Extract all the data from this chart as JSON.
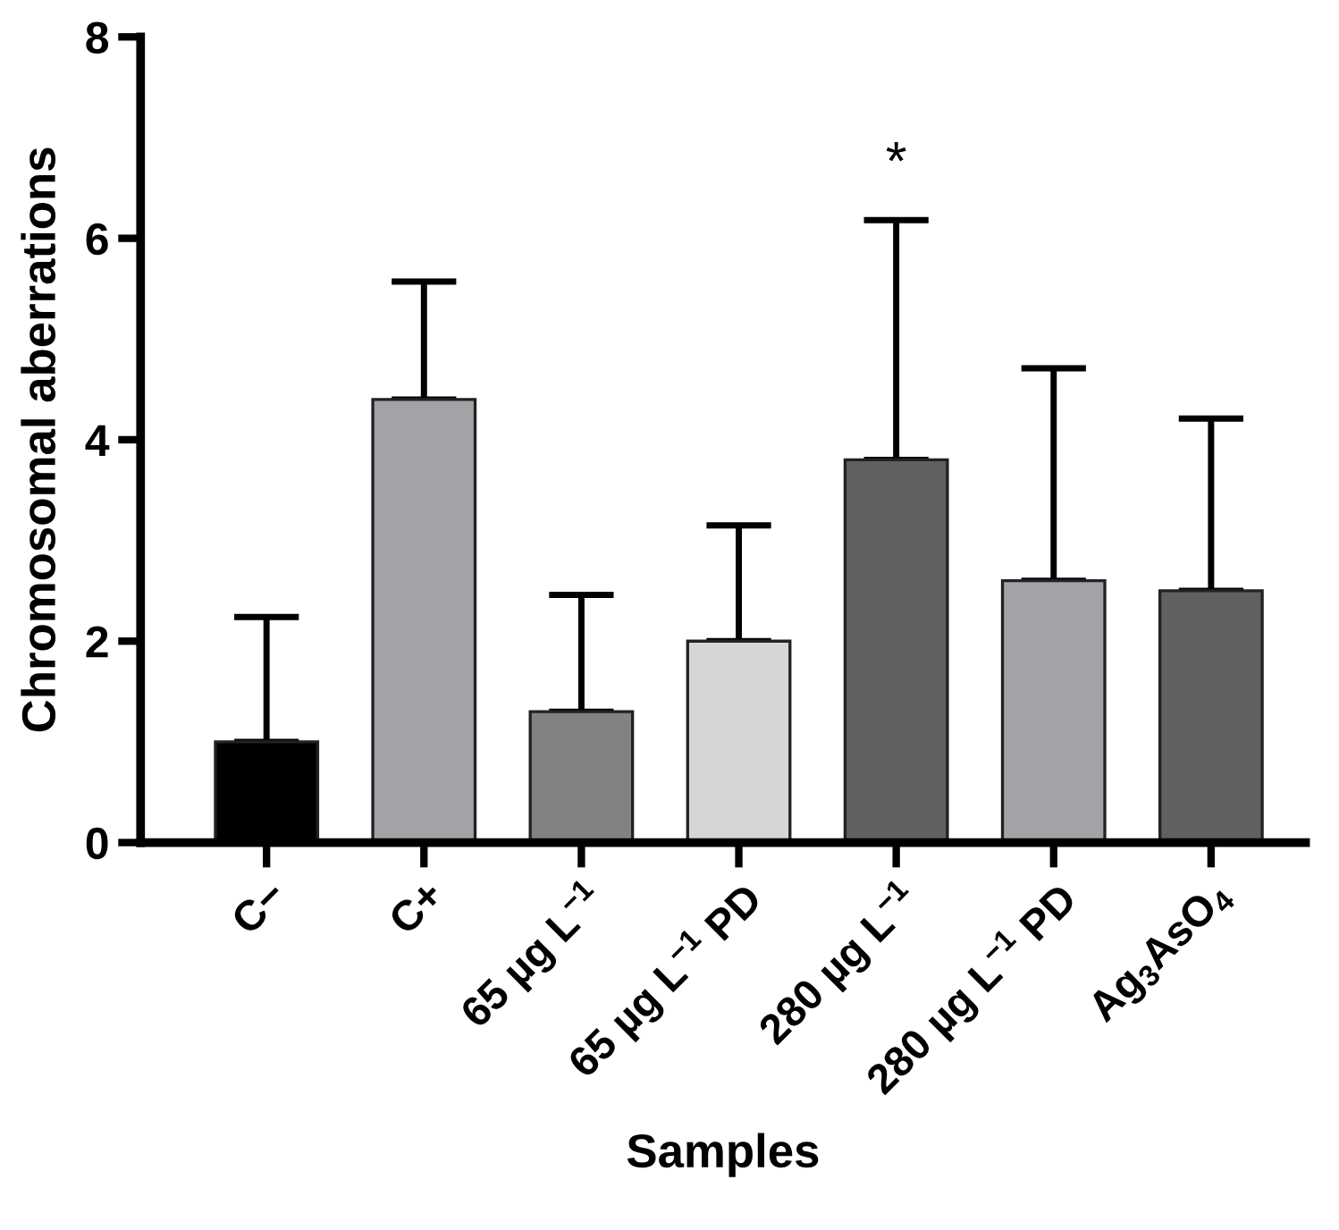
{
  "chart_data": {
    "type": "bar",
    "xlabel": "Samples",
    "ylabel": "Chromosomal aberrations",
    "categories": [
      "C−",
      "C+",
      "65 µg L$^{−1}$",
      "65 µg L$^{−1}$ PD",
      "280 µg L$^{−1}$",
      "280 µg L$^{−1}$ PD",
      "Ag$_{3}$AsO$_{4}$"
    ],
    "values": [
      1.0,
      4.4,
      1.3,
      2.0,
      3.8,
      2.6,
      2.5
    ],
    "errors": [
      [
        1.0,
        2.24
      ],
      [
        4.4,
        5.57
      ],
      [
        1.3,
        2.46
      ],
      [
        2.0,
        3.15
      ],
      [
        3.8,
        6.18
      ],
      [
        2.6,
        4.71
      ],
      [
        2.5,
        4.21
      ]
    ],
    "colors": [
      "#000000",
      "#a3a3a7",
      "#828282",
      "#d6d6d6",
      "#606060",
      "#a3a3a7",
      "#606060"
    ],
    "annotations": [
      "*"
    ],
    "ylim": [
      0,
      8
    ],
    "yticks": [
      0,
      2,
      4,
      6,
      8
    ],
    "grid": false,
    "legend": false
  }
}
